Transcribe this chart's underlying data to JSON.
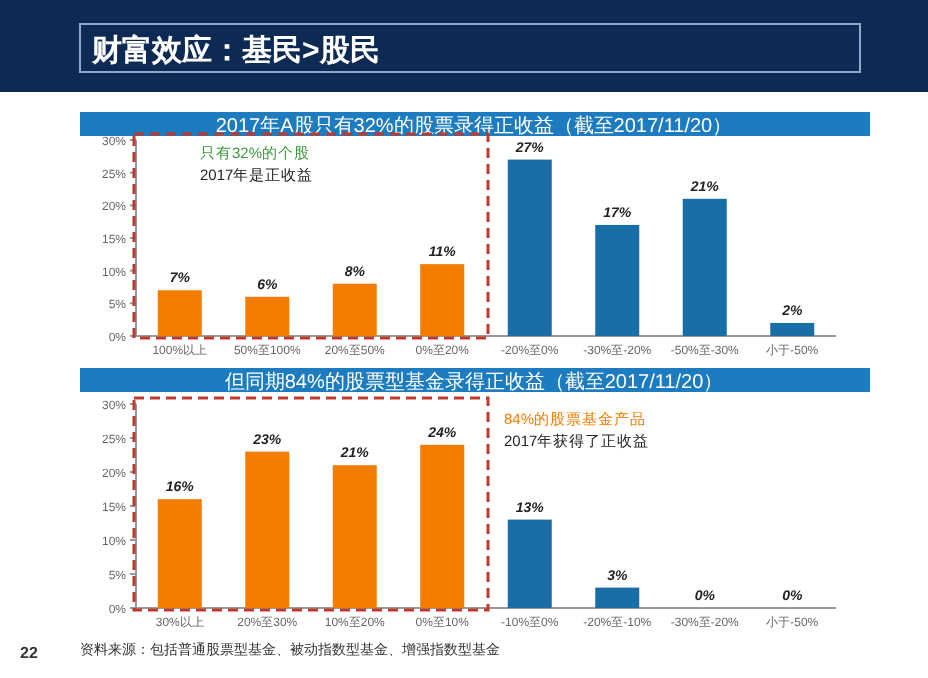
{
  "chart_data": [
    {
      "type": "bar",
      "title": "财富效应：基民>股民",
      "subtitle": "2017年A股只有32%的股票录得正收益（截至2017/11/20）",
      "categories": [
        "100%以上",
        "50%至100%",
        "20%至50%",
        "0%至20%",
        "-20%至0%",
        "-30%至-20%",
        "-50%至-30%",
        "小于-50%"
      ],
      "values": [
        7,
        6,
        8,
        11,
        27,
        17,
        21,
        2
      ],
      "colors": [
        "#f47c00",
        "#f47c00",
        "#f47c00",
        "#f47c00",
        "#1a6ea6",
        "#1a6ea6",
        "#1a6ea6",
        "#1a6ea6"
      ],
      "value_labels": [
        "7%",
        "6%",
        "8%",
        "11%",
        "27%",
        "17%",
        "21%",
        "2%"
      ],
      "ylim": [
        0,
        30
      ],
      "yticks": [
        {
          "value": 0,
          "label": "0%"
        },
        {
          "value": 5,
          "label": "5%"
        },
        {
          "value": 10,
          "label": "10%"
        },
        {
          "value": 15,
          "label": "15%"
        },
        {
          "value": 20,
          "label": "20%"
        },
        {
          "value": 25,
          "label": "25%"
        },
        {
          "value": 30,
          "label": "30%"
        }
      ],
      "grid": false,
      "annotations": [
        "只有32%的个股",
        "2017年是正收益"
      ]
    },
    {
      "type": "bar",
      "title": "但同期84%的股票型基金录得正收益（截至2017/11/20）",
      "categories": [
        "30%以上",
        "20%至30%",
        "10%至20%",
        "0%至10%",
        "-10%至0%",
        "-20%至-10%",
        "-30%至-20%",
        "小于-50%"
      ],
      "values": [
        16,
        23,
        21,
        24,
        13,
        3,
        0,
        0
      ],
      "colors": [
        "#f47c00",
        "#f47c00",
        "#f47c00",
        "#f47c00",
        "#1a6ea6",
        "#1a6ea6",
        "#1a6ea6",
        "#1a6ea6"
      ],
      "value_labels": [
        "16%",
        "23%",
        "21%",
        "24%",
        "13%",
        "3%",
        "0%",
        "0%"
      ],
      "ylim": [
        0,
        30
      ],
      "yticks": [
        {
          "value": 0,
          "label": "0%"
        },
        {
          "value": 5,
          "label": "5%"
        },
        {
          "value": 10,
          "label": "10%"
        },
        {
          "value": 15,
          "label": "15%"
        },
        {
          "value": 20,
          "label": "20%"
        },
        {
          "value": 25,
          "label": "25%"
        },
        {
          "value": 30,
          "label": "30%"
        }
      ],
      "grid": false,
      "annotations": [
        "84%的股票基金产品",
        "2017年获得了正收益",
        "资料来源：包括普通股票型基金、被动指数型基金、增强指数型基金",
        "22"
      ]
    }
  ]
}
